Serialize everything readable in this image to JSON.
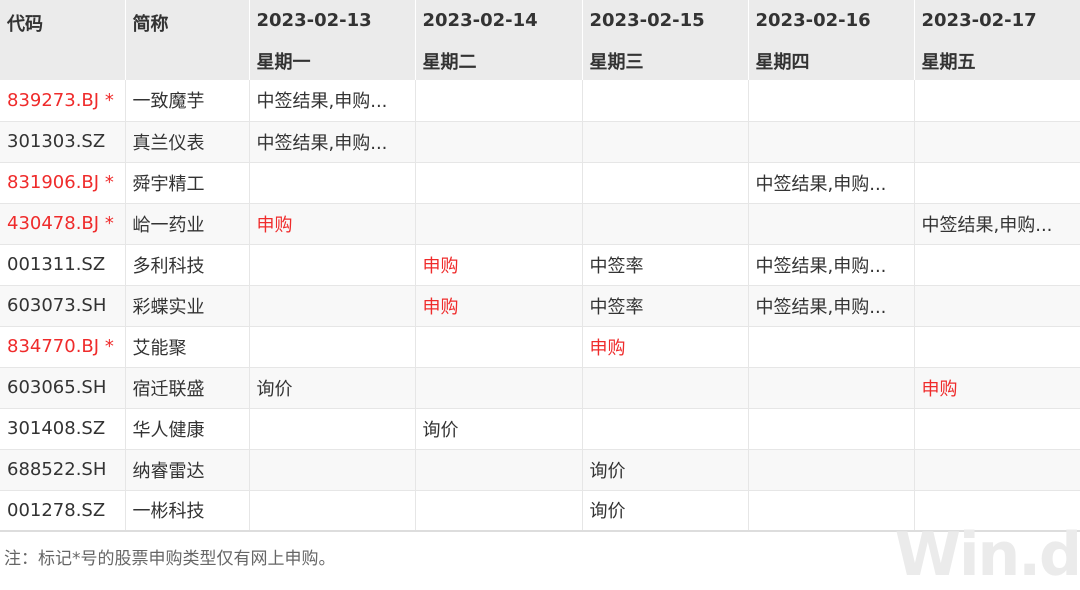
{
  "colors": {
    "highlight": "#ef2b2b",
    "header_bg": "#ebebeb"
  },
  "header": {
    "code": "代码",
    "name": "简称",
    "dates": [
      {
        "date": "2023-02-13",
        "weekday": "星期一"
      },
      {
        "date": "2023-02-14",
        "weekday": "星期二"
      },
      {
        "date": "2023-02-15",
        "weekday": "星期三"
      },
      {
        "date": "2023-02-16",
        "weekday": "星期四"
      },
      {
        "date": "2023-02-17",
        "weekday": "星期五"
      }
    ]
  },
  "rows": [
    {
      "code": "839273.BJ *",
      "red": true,
      "name": "一致魔芋",
      "cells": [
        "中签结果,申购...",
        "",
        "",
        "",
        ""
      ],
      "redcells": []
    },
    {
      "code": "301303.SZ",
      "red": false,
      "name": "真兰仪表",
      "cells": [
        "中签结果,申购...",
        "",
        "",
        "",
        ""
      ],
      "redcells": []
    },
    {
      "code": "831906.BJ *",
      "red": true,
      "name": "舜宇精工",
      "cells": [
        "",
        "",
        "",
        "中签结果,申购...",
        ""
      ],
      "redcells": []
    },
    {
      "code": "430478.BJ *",
      "red": true,
      "name": "峆一药业",
      "cells": [
        "申购",
        "",
        "",
        "",
        "中签结果,申购..."
      ],
      "redcells": [
        0
      ]
    },
    {
      "code": "001311.SZ",
      "red": false,
      "name": "多利科技",
      "cells": [
        "",
        "申购",
        "中签率",
        "中签结果,申购...",
        ""
      ],
      "redcells": [
        1
      ]
    },
    {
      "code": "603073.SH",
      "red": false,
      "name": "彩蝶实业",
      "cells": [
        "",
        "申购",
        "中签率",
        "中签结果,申购...",
        ""
      ],
      "redcells": [
        1
      ]
    },
    {
      "code": "834770.BJ *",
      "red": true,
      "name": "艾能聚",
      "cells": [
        "",
        "",
        "申购",
        "",
        ""
      ],
      "redcells": [
        2
      ]
    },
    {
      "code": "603065.SH",
      "red": false,
      "name": "宿迁联盛",
      "cells": [
        "询价",
        "",
        "",
        "",
        "申购"
      ],
      "redcells": [
        4
      ]
    },
    {
      "code": "301408.SZ",
      "red": false,
      "name": "华人健康",
      "cells": [
        "",
        "询价",
        "",
        "",
        ""
      ],
      "redcells": []
    },
    {
      "code": "688522.SH",
      "red": false,
      "name": "纳睿雷达",
      "cells": [
        "",
        "",
        "询价",
        "",
        ""
      ],
      "redcells": []
    },
    {
      "code": "001278.SZ",
      "red": false,
      "name": "一彬科技",
      "cells": [
        "",
        "",
        "询价",
        "",
        ""
      ],
      "redcells": []
    }
  ],
  "note": "注：标记*号的股票申购类型仅有网上申购。",
  "watermark": "Win.d"
}
